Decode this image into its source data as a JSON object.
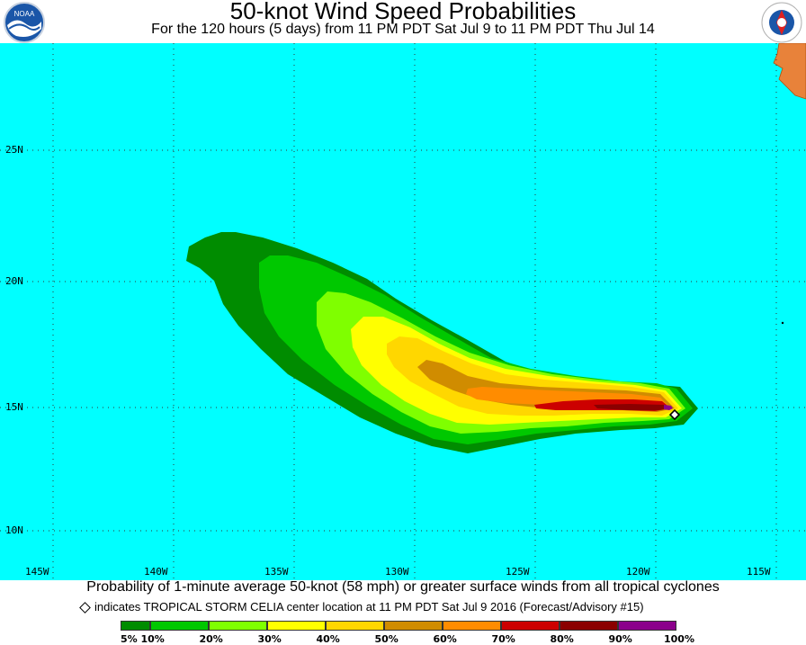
{
  "header": {
    "title": "50-knot Wind Speed Probabilities",
    "subtitle": "For the 120 hours (5 days) from 11 PM PDT Sat Jul 9 to 11 PM PDT Thu Jul 14"
  },
  "logos": {
    "left": "NOAA",
    "right": "NATIONAL WEATHER SERVICE"
  },
  "map": {
    "ocean_color": "#00ffff",
    "land_color": "#e8823a",
    "lat_labels": [
      "25N",
      "20N",
      "15N",
      "10N"
    ],
    "lon_labels": [
      "145W",
      "140W",
      "135W",
      "130W",
      "125W",
      "120W",
      "115W"
    ],
    "storm_marker": "diamond-marker"
  },
  "footer": {
    "line1": "Probability of 1-minute average 50-knot (58 mph) or greater surface winds from all tropical cyclones",
    "line2": "indicates TROPICAL STORM CELIA center location at 11 PM PDT Sat Jul 9 2016 (Forecast/Advisory #15)"
  },
  "legend": {
    "colors": [
      "#008c00",
      "#00c800",
      "#7fff00",
      "#ffff00",
      "#ffd700",
      "#d08c00",
      "#ff8c00",
      "#cc0000",
      "#8b0000",
      "#8b008b"
    ],
    "labels": [
      "5%",
      "10%",
      "20%",
      "30%",
      "40%",
      "50%",
      "60%",
      "70%",
      "80%",
      "90%",
      "100%"
    ]
  }
}
